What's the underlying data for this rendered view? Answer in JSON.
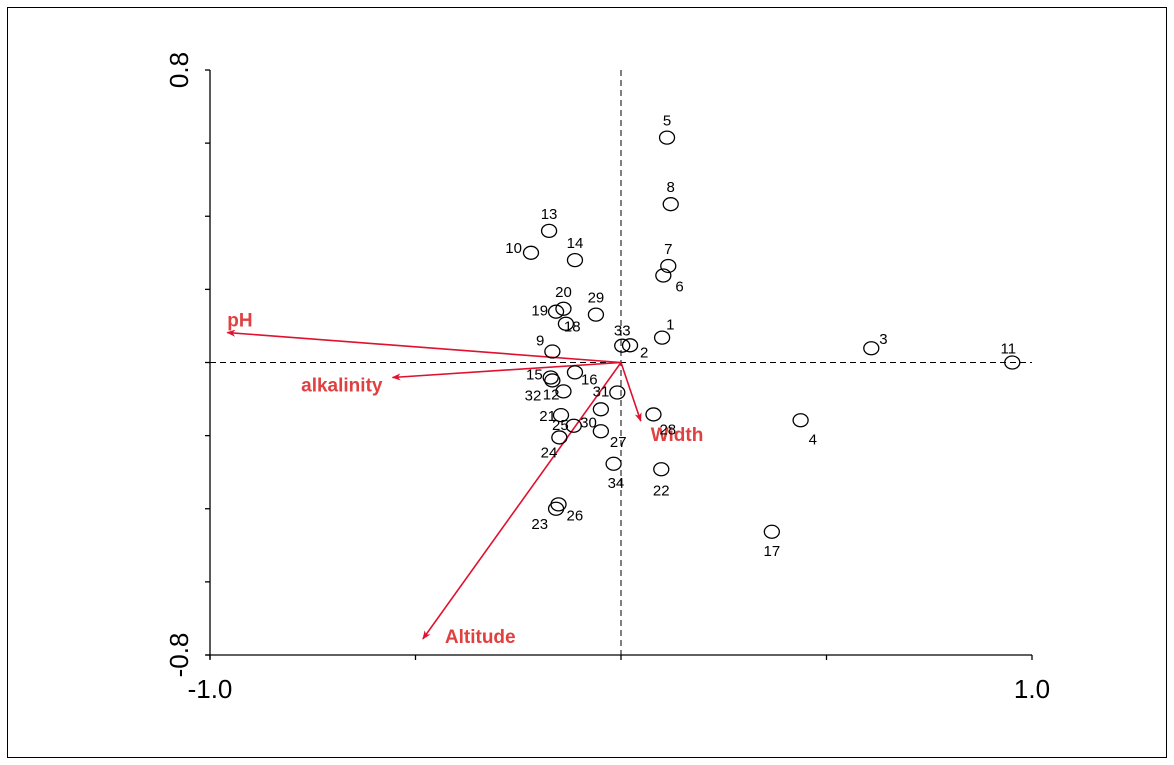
{
  "chart_data": {
    "type": "scatter",
    "subtype": "ordination-biplot",
    "title": "",
    "xlabel": "",
    "ylabel": "",
    "xlim": [
      -1.0,
      1.0
    ],
    "ylim": [
      -0.8,
      0.8
    ],
    "x_tick_labels": [
      "-1.0",
      "1.0"
    ],
    "y_tick_labels": [
      "0.8",
      "-0.8"
    ],
    "x_minor_ticks": [
      -1.0,
      -0.5,
      0.0,
      0.5,
      1.0
    ],
    "y_minor_ticks": [
      -0.8,
      -0.6,
      -0.4,
      -0.2,
      0.0,
      0.2,
      0.4,
      0.6,
      0.8
    ],
    "reference_lines": {
      "x": 0.0,
      "y": 0.0,
      "style": "dashed"
    },
    "grid": false,
    "legend": "none",
    "colors": {
      "points": "#000000",
      "vectors": "#e0102f",
      "vector_labels": "#e04040",
      "axes": "#000000"
    },
    "sites": [
      {
        "label": "1",
        "x": 0.1,
        "y": 0.068
      },
      {
        "label": "2",
        "x": 0.022,
        "y": 0.047
      },
      {
        "label": "3",
        "x": 0.609,
        "y": 0.039
      },
      {
        "label": "4",
        "x": 0.437,
        "y": -0.158
      },
      {
        "label": "5",
        "x": 0.112,
        "y": 0.615
      },
      {
        "label": "6",
        "x": 0.103,
        "y": 0.238
      },
      {
        "label": "7",
        "x": 0.115,
        "y": 0.264
      },
      {
        "label": "8",
        "x": 0.121,
        "y": 0.433
      },
      {
        "label": "9",
        "x": -0.167,
        "y": 0.03
      },
      {
        "label": "10",
        "x": -0.219,
        "y": 0.3
      },
      {
        "label": "11",
        "x": 0.952,
        "y": 0.0
      },
      {
        "label": "12",
        "x": -0.14,
        "y": -0.079
      },
      {
        "label": "13",
        "x": -0.175,
        "y": 0.36
      },
      {
        "label": "14",
        "x": -0.112,
        "y": 0.28
      },
      {
        "label": "15",
        "x": -0.171,
        "y": -0.041
      },
      {
        "label": "16",
        "x": -0.112,
        "y": -0.027
      },
      {
        "label": "17",
        "x": 0.367,
        "y": -0.463
      },
      {
        "label": "18",
        "x": -0.134,
        "y": 0.106
      },
      {
        "label": "19",
        "x": -0.158,
        "y": 0.139
      },
      {
        "label": "20",
        "x": -0.14,
        "y": 0.147
      },
      {
        "label": "21",
        "x": -0.146,
        "y": -0.144
      },
      {
        "label": "22",
        "x": 0.098,
        "y": -0.292
      },
      {
        "label": "23",
        "x": -0.158,
        "y": -0.4
      },
      {
        "label": "24",
        "x": -0.15,
        "y": -0.205
      },
      {
        "label": "25",
        "x": -0.115,
        "y": -0.173
      },
      {
        "label": "26",
        "x": -0.152,
        "y": -0.388
      },
      {
        "label": "27",
        "x": -0.049,
        "y": -0.188
      },
      {
        "label": "28",
        "x": 0.079,
        "y": -0.142
      },
      {
        "label": "29",
        "x": -0.061,
        "y": 0.131
      },
      {
        "label": "30",
        "x": -0.049,
        "y": -0.128
      },
      {
        "label": "31",
        "x": -0.009,
        "y": -0.082
      },
      {
        "label": "32",
        "x": -0.167,
        "y": -0.049
      },
      {
        "label": "33",
        "x": 0.003,
        "y": 0.046
      },
      {
        "label": "34",
        "x": -0.018,
        "y": -0.277
      }
    ],
    "vectors": [
      {
        "label": "pH",
        "x": -0.958,
        "y": 0.082
      },
      {
        "label": "alkalinity",
        "x": -0.556,
        "y": -0.041
      },
      {
        "label": "Width",
        "x": 0.048,
        "y": -0.16
      },
      {
        "label": "Altitude",
        "x": -0.482,
        "y": -0.756
      }
    ]
  }
}
